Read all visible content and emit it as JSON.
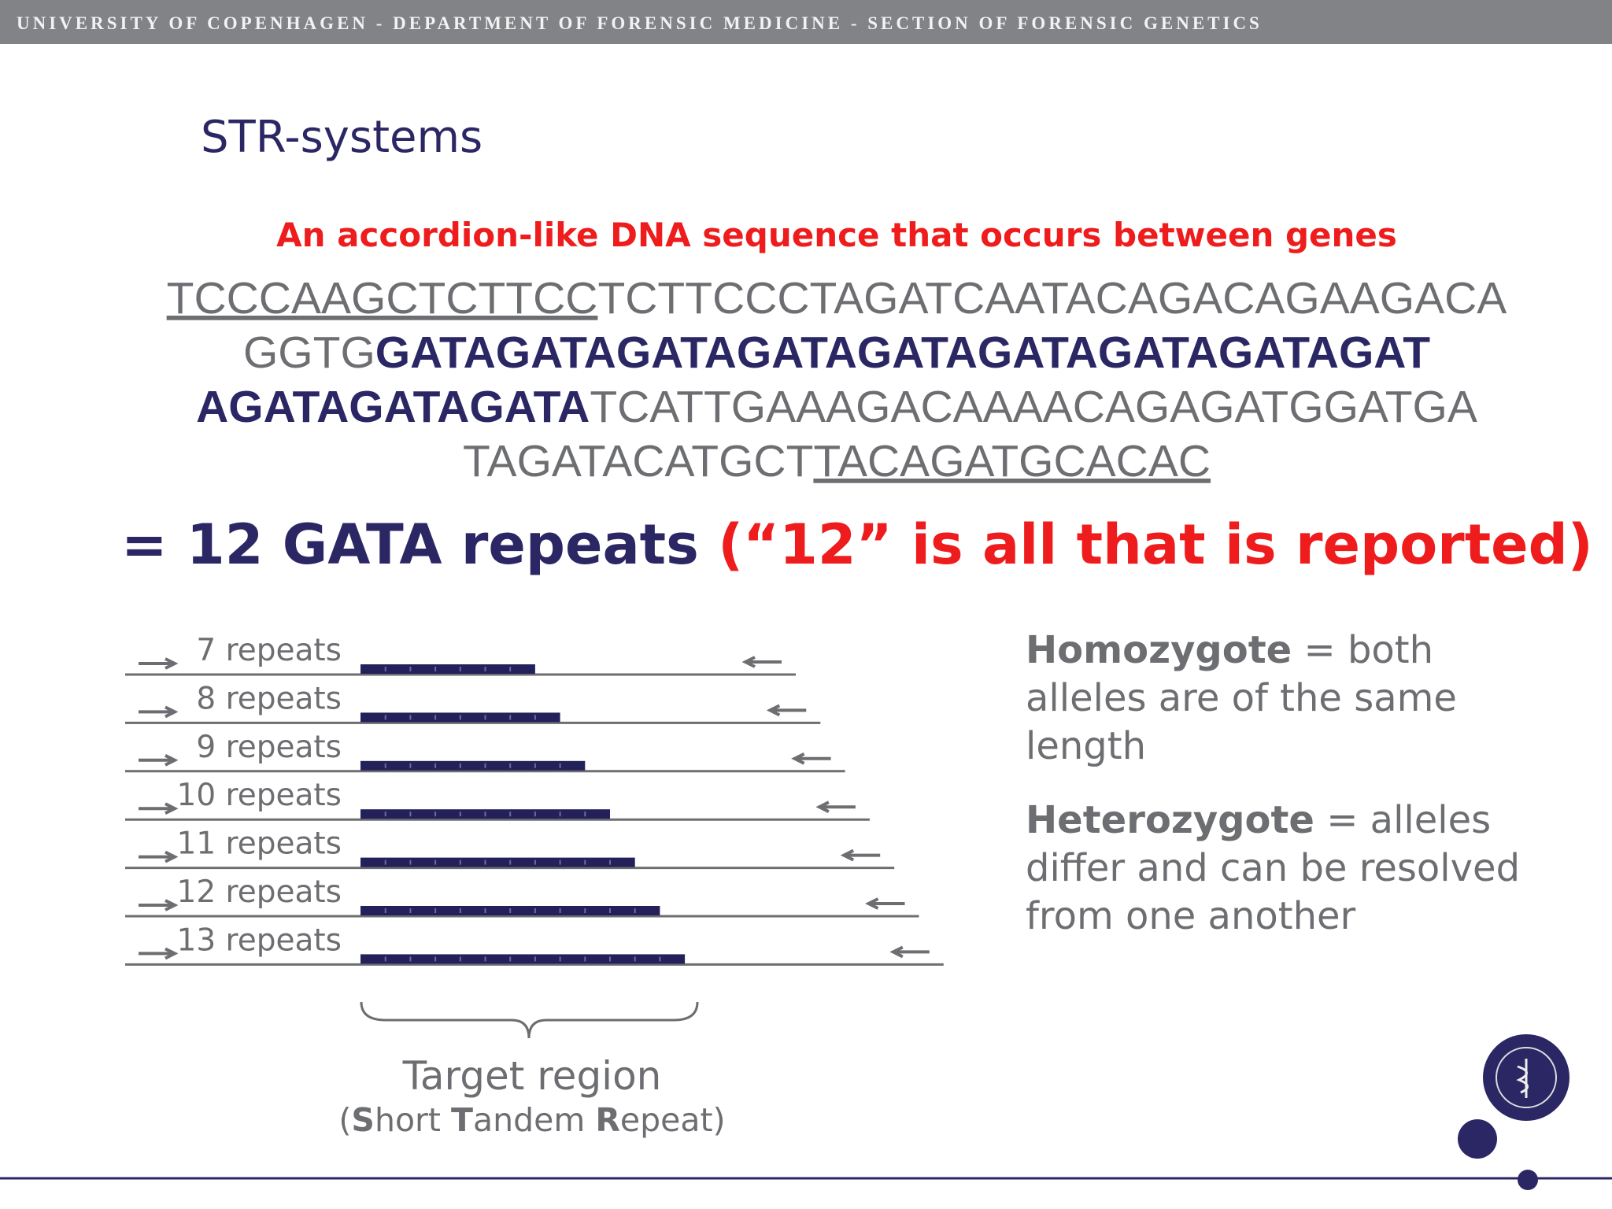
{
  "header": {
    "text": "UNIVERSITY OF COPENHAGEN - DEPARTMENT OF FORENSIC MEDICINE - SECTION OF FORENSIC GENETICS"
  },
  "title": "STR-systems",
  "subtitle": "An accordion-like DNA sequence that occurs between genes",
  "sequence": {
    "lines": [
      [
        {
          "text": "TCCCAAGCTCTTCC",
          "style": "underline"
        },
        {
          "text": "TCTTCCCTAGATCAATACAGACAGAAGACA",
          "style": "plain"
        }
      ],
      [
        {
          "text": "GGTG",
          "style": "plain"
        },
        {
          "text": "GATAGATAGATAGATAGATAGATAGATAGATAGAT",
          "style": "bold"
        }
      ],
      [
        {
          "text": "AGATAGATAGATA",
          "style": "bold"
        },
        {
          "text": "TCATTGAAAGACAAAACAGAGATGGATGA",
          "style": "plain"
        }
      ],
      [
        {
          "text": "TAGATACATGCT",
          "style": "plain"
        },
        {
          "text": "TACAGATGCACAC",
          "style": "underline"
        }
      ]
    ]
  },
  "result": [
    {
      "text": "= 12 GATA repeats ",
      "style": "emphasis"
    },
    {
      "text": "(“12” is all that is reported)",
      "style": "alert"
    }
  ],
  "alleles": [
    {
      "value": 7,
      "label": "7 repeats"
    },
    {
      "value": 8,
      "label": "8 repeats"
    },
    {
      "value": 9,
      "label": "9 repeats"
    },
    {
      "value": 10,
      "label": "10 repeats"
    },
    {
      "value": 11,
      "label": "11 repeats"
    },
    {
      "value": 12,
      "label": "12 repeats"
    },
    {
      "value": 13,
      "label": "13 repeats"
    }
  ],
  "target": {
    "title": "Target region",
    "subtitle": [
      {
        "text": "(",
        "style": "plain"
      },
      {
        "text": "S",
        "style": "bold"
      },
      {
        "text": "hort ",
        "style": "plain"
      },
      {
        "text": "T",
        "style": "bold"
      },
      {
        "text": "andem ",
        "style": "plain"
      },
      {
        "text": "R",
        "style": "bold"
      },
      {
        "text": "epeat)",
        "style": "plain"
      }
    ]
  },
  "definitions": [
    [
      [
        {
          "text": "Homozygote",
          "style": "bold"
        },
        {
          "text": " = both",
          "style": "plain"
        }
      ],
      [
        {
          "text": "alleles are of the same",
          "style": "plain"
        }
      ],
      [
        {
          "text": "length",
          "style": "plain"
        }
      ]
    ],
    [
      [
        {
          "text": "Heterozygote",
          "style": "bold"
        },
        {
          "text": " = alleles",
          "style": "plain"
        }
      ],
      [
        {
          "text": "differ and can be resolved",
          "style": "plain"
        }
      ],
      [
        {
          "text": "from one another",
          "style": "plain"
        }
      ]
    ]
  ]
}
